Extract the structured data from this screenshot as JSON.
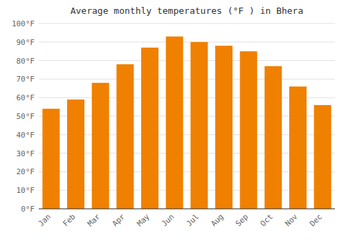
{
  "chart_data": {
    "type": "bar",
    "title": "Average monthly temperatures (°F ) in Bhera",
    "categories": [
      "Jan",
      "Feb",
      "Mar",
      "Apr",
      "May",
      "Jun",
      "Jul",
      "Aug",
      "Sep",
      "Oct",
      "Nov",
      "Dec"
    ],
    "values": [
      54,
      59,
      68,
      78,
      87,
      93,
      90,
      88,
      85,
      77,
      66,
      56
    ],
    "color": "#F08000",
    "ylim": [
      0,
      100
    ],
    "yticks": [
      {
        "value": 0,
        "label": "0°F"
      },
      {
        "value": 10,
        "label": "10°F"
      },
      {
        "value": 20,
        "label": "20°F"
      },
      {
        "value": 30,
        "label": "30°F"
      },
      {
        "value": 40,
        "label": "40°F"
      },
      {
        "value": 50,
        "label": "50°F"
      },
      {
        "value": 60,
        "label": "60°F"
      },
      {
        "value": 70,
        "label": "70°F"
      },
      {
        "value": 80,
        "label": "80°F"
      },
      {
        "value": 90,
        "label": "90°F"
      },
      {
        "value": 100,
        "label": "100°F"
      }
    ],
    "grid": true
  }
}
